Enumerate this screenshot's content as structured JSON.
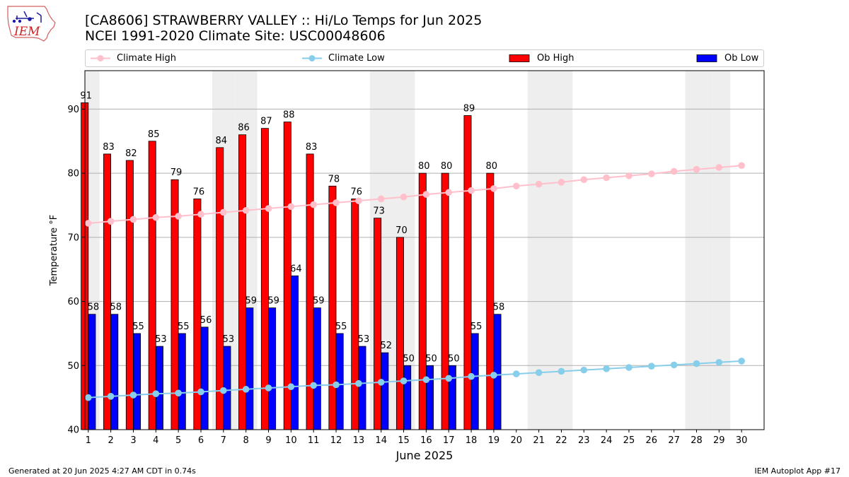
{
  "header": {
    "title_line1": "[CA8606] STRAWBERRY VALLEY :: Hi/Lo Temps for Jun 2025",
    "title_line2": "NCEI 1991-2020 Climate Site: USC00048606",
    "logo_text": "IEM"
  },
  "legend": {
    "climate_high": "Climate High",
    "climate_low": "Climate Low",
    "ob_high": "Ob High",
    "ob_low": "Ob Low"
  },
  "footer": {
    "generated": "Generated at 20 Jun 2025 4:27 AM CDT in 0.74s",
    "app": "IEM Autoplot App #17"
  },
  "colors": {
    "ob_high": "#ff0000",
    "ob_low": "#0000ff",
    "climate_high": "#ffc0cb",
    "climate_low": "#87ceeb",
    "weekend_band": "#eeeeee",
    "grid": "#b0b0b0"
  },
  "chart_data": {
    "type": "bar",
    "title": "[CA8606] STRAWBERRY VALLEY :: Hi/Lo Temps for Jun 2025",
    "subtitle": "NCEI 1991-2020 Climate Site: USC00048606",
    "xlabel": "June 2025",
    "ylabel": "Temperature °F",
    "ylim": [
      40,
      96
    ],
    "yticks": [
      40,
      50,
      60,
      70,
      80,
      90
    ],
    "grid": "horizontal",
    "legend_position": "top",
    "categories": [
      "1",
      "2",
      "3",
      "4",
      "5",
      "6",
      "7",
      "8",
      "9",
      "10",
      "11",
      "12",
      "13",
      "14",
      "15",
      "16",
      "17",
      "18",
      "19",
      "20",
      "21",
      "22",
      "23",
      "24",
      "25",
      "26",
      "27",
      "28",
      "29",
      "30"
    ],
    "shaded_days": [
      1,
      7,
      8,
      14,
      15,
      21,
      22,
      28,
      29
    ],
    "series": [
      {
        "name": "Ob High",
        "type": "bar",
        "values": [
          91,
          83,
          82,
          85,
          79,
          76,
          84,
          86,
          87,
          88,
          83,
          78,
          76,
          73,
          70,
          80,
          80,
          89,
          80,
          null,
          null,
          null,
          null,
          null,
          null,
          null,
          null,
          null,
          null,
          null
        ]
      },
      {
        "name": "Ob Low",
        "type": "bar",
        "values": [
          58,
          58,
          55,
          53,
          55,
          56,
          53,
          59,
          59,
          64,
          59,
          55,
          53,
          52,
          50,
          50,
          50,
          55,
          58,
          null,
          null,
          null,
          null,
          null,
          null,
          null,
          null,
          null,
          null,
          null
        ]
      },
      {
        "name": "Climate High",
        "type": "line",
        "values": [
          72.2,
          72.5,
          72.8,
          73.1,
          73.3,
          73.6,
          73.9,
          74.2,
          74.5,
          74.8,
          75.1,
          75.4,
          75.7,
          76.0,
          76.3,
          76.7,
          77.0,
          77.3,
          77.6,
          78.0,
          78.3,
          78.6,
          79.0,
          79.3,
          79.6,
          79.9,
          80.3,
          80.6,
          80.9,
          81.2
        ]
      },
      {
        "name": "Climate Low",
        "type": "line",
        "values": [
          45.0,
          45.2,
          45.4,
          45.6,
          45.7,
          45.9,
          46.1,
          46.3,
          46.5,
          46.7,
          46.9,
          47.0,
          47.2,
          47.4,
          47.6,
          47.8,
          48.0,
          48.3,
          48.5,
          48.7,
          48.9,
          49.1,
          49.3,
          49.5,
          49.7,
          49.9,
          50.1,
          50.3,
          50.5,
          50.7
        ]
      }
    ]
  }
}
